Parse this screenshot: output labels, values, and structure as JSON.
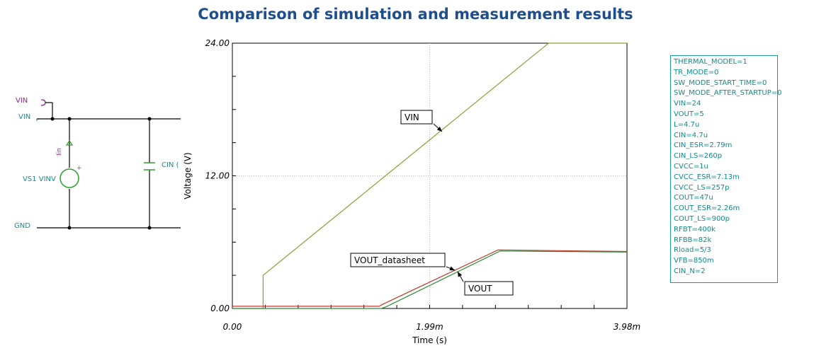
{
  "title": "Comparison of simulation and measurement results",
  "schematic": {
    "vin_port": "VIN",
    "vin_net": "VIN",
    "source_label": "VS1 VINV",
    "current_label": "Iin",
    "cap_label": "CIN (",
    "gnd_label": "GND",
    "plus": "+"
  },
  "colors": {
    "label_purple": "#8a2a8a",
    "label_teal": "#1a8a8a",
    "source_green": "#2ca02c",
    "vin_trace": "#8aa13a",
    "vout_trace": "#2e8b3a",
    "datasheet_trace": "#c0392b",
    "title_blue": "#1f4e8c"
  },
  "chart_data": {
    "type": "line",
    "xlabel": "Time (s)",
    "ylabel": "Voltage (V)",
    "xlim": [
      0,
      3.98
    ],
    "ylim": [
      0,
      24
    ],
    "x_ticks": [
      "0.00",
      "1.99m",
      "3.98m"
    ],
    "y_ticks": [
      "0.00",
      "12.00",
      "24.00"
    ],
    "grid": true,
    "series": [
      {
        "name": "VIN",
        "color": "#8aa13a",
        "x": [
          0,
          0.31,
          0.31,
          3.19,
          3.98
        ],
        "y": [
          0,
          0,
          3,
          24,
          24
        ]
      },
      {
        "name": "VOUT",
        "color": "#2e8b3a",
        "x": [
          0,
          1.5,
          1.55,
          2.7,
          3.98
        ],
        "y": [
          0,
          0,
          0.15,
          5.2,
          5.1
        ]
      },
      {
        "name": "VOUT_datasheet",
        "color": "#c0392b",
        "x": [
          0,
          1.48,
          1.52,
          2.68,
          3.98
        ],
        "y": [
          0.2,
          0.2,
          0.4,
          5.3,
          5.15
        ]
      }
    ],
    "annotations": [
      {
        "label": "VIN"
      },
      {
        "label": "VOUT_datasheet"
      },
      {
        "label": "VOUT"
      }
    ]
  },
  "parameters": [
    "THERMAL_MODEL=1",
    "TR_MODE=0",
    "SW_MODE_START_TIME=0",
    "SW_MODE_AFTER_STARTUP=0",
    "VIN=24",
    "VOUT=5",
    "L=4.7u",
    "CIN=4.7u",
    "CIN_ESR=2.79m",
    "CIN_LS=260p",
    "CVCC=1u",
    "CVCC_ESR=7.13m",
    "CVCC_LS=257p",
    "COUT=47u",
    "COUT_ESR=2.26m",
    "COUT_LS=900p",
    "RFBT=400k",
    "RFBB=82k",
    "Rload=5/3",
    "VFB=850m",
    "CIN_N=2"
  ]
}
